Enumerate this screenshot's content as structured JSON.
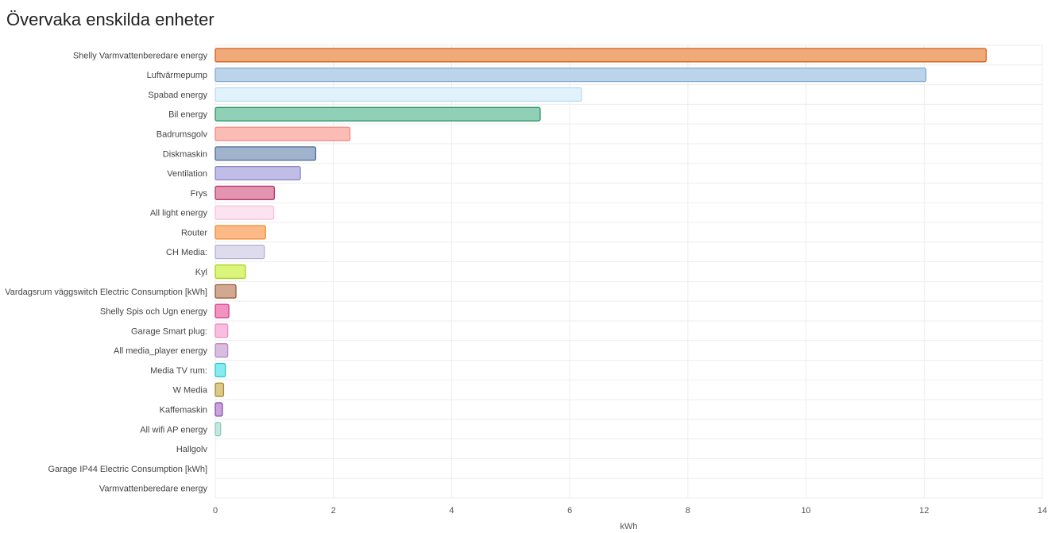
{
  "card": {
    "title": "Övervaka enskilda enheter"
  },
  "chart_data": {
    "type": "bar",
    "orientation": "horizontal",
    "xlabel": "kWh",
    "xlim": [
      0,
      14
    ],
    "xticks": [
      0,
      2,
      4,
      6,
      8,
      10,
      12,
      14
    ],
    "grid": true,
    "categories": [
      "Shelly Varmvattenberedare energy",
      "Luftvärmepump",
      "Spabad energy",
      "Bil energy",
      "Badrumsgolv",
      "Diskmaskin",
      "Ventilation",
      "Frys",
      "All light energy",
      "Router",
      "CH Media:",
      "Kyl",
      "Vardagsrum väggswitch Electric Consumption [kWh]",
      "Shelly Spis och Ugn energy",
      "Garage Smart plug:",
      "All media_player energy",
      "Media TV rum:",
      "W Media",
      "Kaffemaskin",
      "All wifi AP energy",
      "Hallgolv",
      "Garage IP44 Electric Consumption [kWh]",
      "Varmvattenberedare energy"
    ],
    "values": [
      13.05,
      12.03,
      6.2,
      5.5,
      2.28,
      1.7,
      1.44,
      1.0,
      0.99,
      0.85,
      0.83,
      0.51,
      0.35,
      0.23,
      0.21,
      0.21,
      0.17,
      0.14,
      0.12,
      0.09,
      0,
      0,
      0
    ],
    "colors": [
      {
        "fill": "#f0aa7a",
        "stroke": "#d0621d"
      },
      {
        "fill": "#bcd4ea",
        "stroke": "#7eaad1"
      },
      {
        "fill": "#e2f2fc",
        "stroke": "#b8dcf3"
      },
      {
        "fill": "#90d0b6",
        "stroke": "#2a946a"
      },
      {
        "fill": "#fcbcb6",
        "stroke": "#ef8a82"
      },
      {
        "fill": "#9fb3cd",
        "stroke": "#4d6b93"
      },
      {
        "fill": "#c0bde6",
        "stroke": "#8a86c9"
      },
      {
        "fill": "#e394b0",
        "stroke": "#b9376a"
      },
      {
        "fill": "#fde2f0",
        "stroke": "#f5c3dd"
      },
      {
        "fill": "#fdb986",
        "stroke": "#f08a32"
      },
      {
        "fill": "#dedbec",
        "stroke": "#b5b0cf"
      },
      {
        "fill": "#dbf57c",
        "stroke": "#a8cf22"
      },
      {
        "fill": "#d1a890",
        "stroke": "#98593a"
      },
      {
        "fill": "#f192c1",
        "stroke": "#d63b8a"
      },
      {
        "fill": "#f8bde0",
        "stroke": "#ec8cc4"
      },
      {
        "fill": "#d9bde0",
        "stroke": "#b78ac2"
      },
      {
        "fill": "#86ebee",
        "stroke": "#2ec5cb"
      },
      {
        "fill": "#dcca8a",
        "stroke": "#a78b2a"
      },
      {
        "fill": "#c9a3dc",
        "stroke": "#8a4bab"
      },
      {
        "fill": "#c4e8e1",
        "stroke": "#8ccabf"
      },
      {
        "fill": "#dddddd",
        "stroke": "#bbbbbb"
      },
      {
        "fill": "#dddddd",
        "stroke": "#bbbbbb"
      },
      {
        "fill": "#dddddd",
        "stroke": "#bbbbbb"
      }
    ]
  }
}
